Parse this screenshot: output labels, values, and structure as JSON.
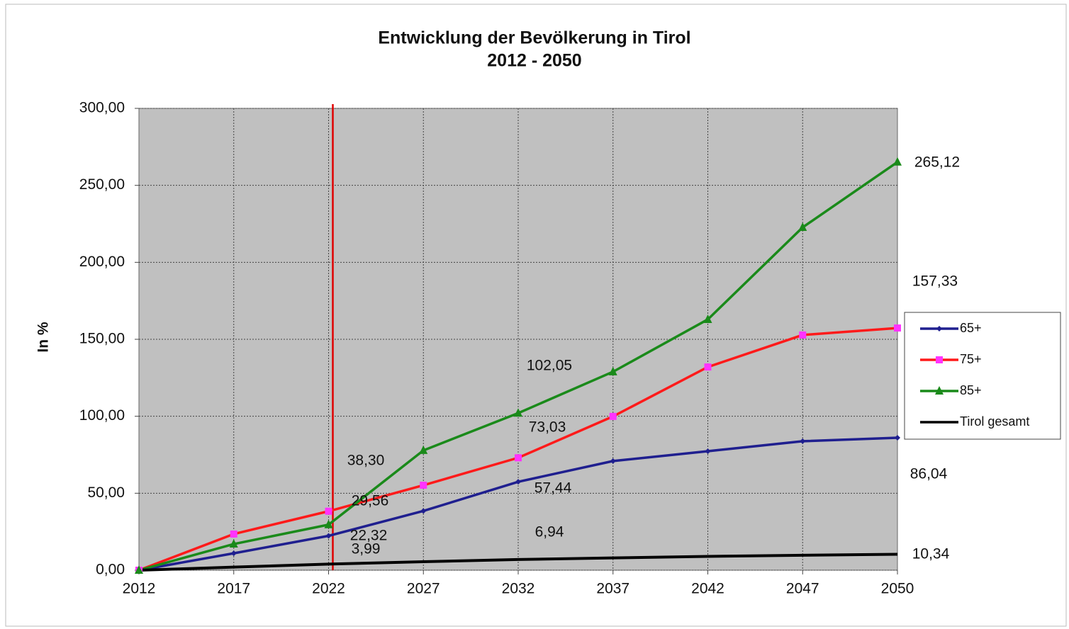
{
  "chart_data": {
    "type": "line",
    "title": "Entwicklung der Bevölkerung in Tirol",
    "subtitle": "2012 - 2050",
    "y_label": "In %",
    "categories": [
      "2012",
      "2017",
      "2022",
      "2027",
      "2032",
      "2037",
      "2042",
      "2047",
      "2050"
    ],
    "series": [
      {
        "name": "65+",
        "color": "#1f1f8f",
        "marker": "diamond",
        "marker_color": "#1f1f8f",
        "values": [
          0,
          11,
          22.32,
          38.5,
          57.44,
          70.9,
          77.3,
          83.8,
          86.04
        ],
        "value_labels": [
          null,
          null,
          "22,32",
          null,
          "57,44",
          null,
          null,
          null,
          "86,04"
        ]
      },
      {
        "name": "75+",
        "color": "#ff1a1a",
        "marker": "square",
        "marker_color": "#ff33ff",
        "values": [
          0,
          23.5,
          38.3,
          55.2,
          73.03,
          99.9,
          132,
          152.8,
          157.33
        ],
        "value_labels": [
          null,
          null,
          "38,30",
          null,
          "73,03",
          null,
          null,
          null,
          "157,33"
        ]
      },
      {
        "name": "85+",
        "color": "#1a8a1a",
        "marker": "triangle",
        "marker_color": "#1a8a1a",
        "values": [
          0,
          17,
          29.56,
          77.8,
          102.05,
          128.9,
          162.9,
          222.7,
          265.12
        ],
        "value_labels": [
          null,
          null,
          "29,56",
          null,
          "102,05",
          null,
          null,
          null,
          "265,12"
        ]
      },
      {
        "name": "Tirol gesamt",
        "color": "#000000",
        "marker": "none",
        "values": [
          0,
          2,
          3.99,
          5.5,
          6.94,
          8,
          9,
          9.7,
          10.34
        ],
        "value_labels": [
          null,
          null,
          "3,99",
          null,
          "6,94",
          null,
          null,
          null,
          "10,34"
        ]
      }
    ],
    "ylim": [
      0,
      300
    ],
    "yticks": [
      {
        "value": 0,
        "label": "0,00"
      },
      {
        "value": 50,
        "label": "50,00"
      },
      {
        "value": 100,
        "label": "100,00"
      },
      {
        "value": 150,
        "label": "150,00"
      },
      {
        "value": 200,
        "label": "200,00"
      },
      {
        "value": 250,
        "label": "250,00"
      },
      {
        "value": 300,
        "label": "300,00"
      }
    ],
    "grid": true,
    "plot_background": "#c0c0c0",
    "legend": "right",
    "reference_line": {
      "at": "2022",
      "color": "#e00000"
    }
  }
}
